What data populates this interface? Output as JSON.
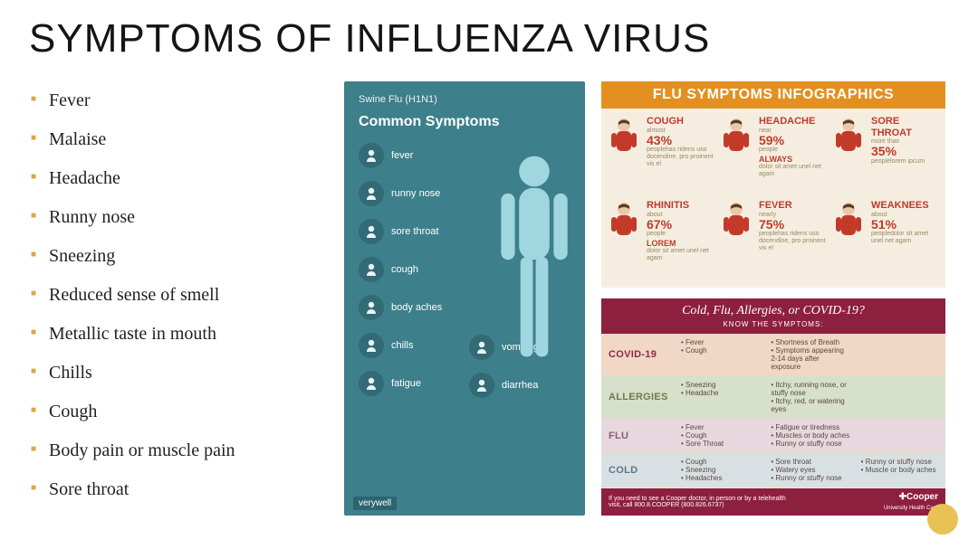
{
  "accent": "#e0a63f",
  "title": "SYMPTOMS OF INFLUENZA VIRUS",
  "bullets": [
    "Fever",
    "Malaise",
    "Headache",
    "Runny nose",
    "Sneezing",
    "Reduced sense of smell",
    "Metallic taste in mouth",
    "Chills",
    "Cough",
    "Body pain or muscle pain",
    "Sore throat"
  ],
  "swine": {
    "bg": "#3d7f8b",
    "subtitle": "Swine Flu (H1N1)",
    "heading": "Common Symptoms",
    "left_items": [
      "fever",
      "runny nose",
      "sore throat",
      "cough",
      "body aches",
      "chills",
      "fatigue"
    ],
    "right_items": [
      "vomiting",
      "diarrhea"
    ],
    "brand": "verywell"
  },
  "flu_ig": {
    "bg": "#f5eee0",
    "bar_bg": "#e39021",
    "bar_text": "FLU SYMPTOMS INFOGRAPHICS",
    "color_name": "#be3b2b",
    "cells": [
      {
        "name": "COUGH",
        "sub": "almost",
        "pct": "43%",
        "lab": "people",
        "line2": "",
        "body": "has ridens uso docendine, pro proinent vis el"
      },
      {
        "name": "HEADACHE",
        "sub": "near",
        "pct": "59%",
        "lab": "people",
        "line2": "ALWAYS",
        "body": "dolor sit amet unel net agam"
      },
      {
        "name": "SORE THROAT",
        "sub": "more than",
        "pct": "35%",
        "lab": "people",
        "line2": "",
        "body": "lorem ipcum"
      },
      {
        "name": "RHINITIS",
        "sub": "about",
        "pct": "67%",
        "lab": "people",
        "line2": "LOREM",
        "body": "dolor sit amet unel net agam"
      },
      {
        "name": "FEVER",
        "sub": "nearly",
        "pct": "75%",
        "lab": "people",
        "line2": "",
        "body": "has ridens uso docendine, pro proinent vis el"
      },
      {
        "name": "WEAKNEES",
        "sub": "about",
        "pct": "51%",
        "lab": "people",
        "line2": "",
        "body": "dolor sit amet unel net agam"
      }
    ]
  },
  "compare": {
    "head_bg": "#8d1f3f",
    "head1": "Cold, Flu, Allergies, or COVID-19?",
    "head2": "KNOW THE SYMPTOMS:",
    "rows": [
      {
        "label": "COVID-19",
        "bg": "#f0d7c6",
        "lab_color": "#8a2c47",
        "c1": [
          "Fever",
          "Cough"
        ],
        "c2": [
          "Shortness of Breath",
          "Symptoms appearing 2-14 days after exposure"
        ],
        "c3": []
      },
      {
        "label": "ALLERGIES",
        "bg": "#d7e0cb",
        "lab_color": "#6f7a52",
        "c1": [
          "Sneezing",
          "Headache"
        ],
        "c2": [
          "Itchy, running nose, or stuffy nose",
          "Itchy, red, or watering eyes"
        ],
        "c3": []
      },
      {
        "label": "FLU",
        "bg": "#e7d7df",
        "lab_color": "#8a5f78",
        "c1": [
          "Fever",
          "Cough",
          "Sore Throat"
        ],
        "c2": [
          "Fatigue or tiredness",
          "Muscles or body aches",
          "Runny or stuffy nose"
        ],
        "c3": []
      },
      {
        "label": "COLD",
        "bg": "#d8e0e4",
        "lab_color": "#5c7684",
        "c1": [
          "Cough",
          "Sneezing",
          "Headaches"
        ],
        "c2": [
          "Sore throat",
          "Watery eyes",
          "Runny or stuffy nose"
        ],
        "c3": [
          "Runny or stuffy nose",
          "Muscle or body aches"
        ]
      }
    ],
    "foot_left": "If you need to see a Cooper doctor, in person or by a telehealth visit, call 800.8.COOPER (800.826.6737)",
    "foot_brand": "Cooper",
    "foot_sub": "University Health Care"
  }
}
